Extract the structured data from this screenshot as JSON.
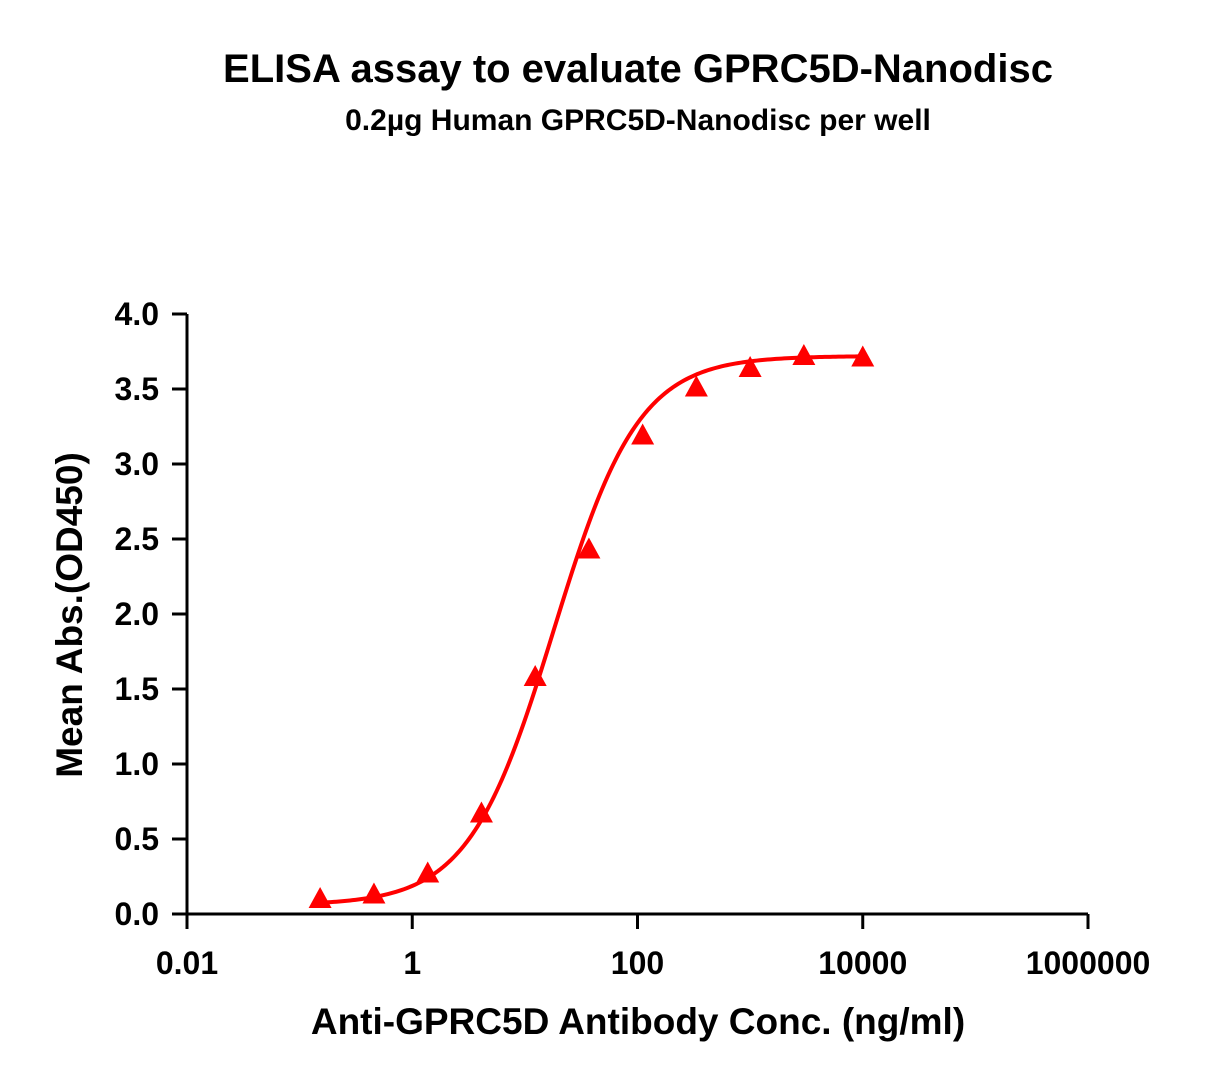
{
  "chart_data": {
    "type": "scatter",
    "title": "ELISA assay to evaluate GPRC5D-Nanodisc",
    "subtitle": "0.2µg Human GPRC5D-Nanodisc per well",
    "xlabel": "Anti-GPRC5D Antibody Conc. (ng/ml)",
    "ylabel": "Mean Abs.(OD450)",
    "x_scale": "log",
    "xlim": [
      0.01,
      1000000
    ],
    "ylim": [
      0,
      4.0
    ],
    "x_ticks": [
      0.01,
      1,
      100,
      10000,
      1000000
    ],
    "x_tick_labels": [
      "0.01",
      "1",
      "100",
      "10000",
      "1000000"
    ],
    "y_ticks": [
      0,
      0.5,
      1.0,
      1.5,
      2.0,
      2.5,
      3.0,
      3.5,
      4.0
    ],
    "y_tick_labels": [
      "0.0",
      "0.5",
      "1.0",
      "1.5",
      "2.0",
      "2.5",
      "3.0",
      "3.5",
      "4.0"
    ],
    "grid": false,
    "series": [
      {
        "color": "#ff0000",
        "marker": "triangle",
        "fit": "four-parameter-logistic",
        "x": [
          0.152,
          0.457,
          1.372,
          4.115,
          12.35,
          37.04,
          111.1,
          333.3,
          1000,
          3000,
          10000
        ],
        "y": [
          0.1,
          0.13,
          0.27,
          0.67,
          1.58,
          2.43,
          3.19,
          3.51,
          3.64,
          3.72,
          3.71
        ]
      }
    ]
  }
}
